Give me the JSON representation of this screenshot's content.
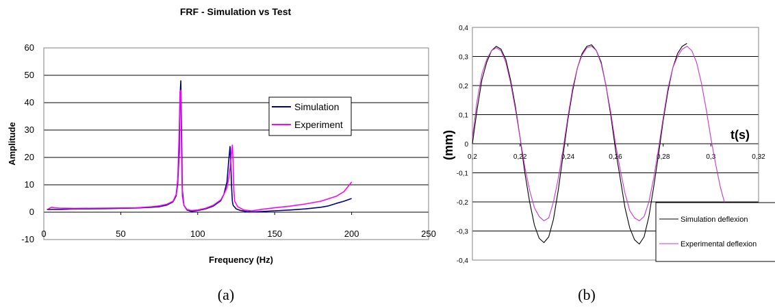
{
  "chart_data": [
    {
      "type": "line",
      "title": "FRF - Simulation vs Test",
      "xlabel": "Frequency (Hz)",
      "ylabel": "Amplitude",
      "xlim": [
        0,
        250
      ],
      "ylim": [
        -10,
        60
      ],
      "xticks": [
        "0",
        "50",
        "100",
        "150",
        "200",
        "250"
      ],
      "yticks": [
        "-10",
        "0",
        "10",
        "20",
        "30",
        "40",
        "50",
        "60"
      ],
      "grid": "horizontal",
      "legend_position": "right",
      "caption": "(a)",
      "series": [
        {
          "name": "Simulation",
          "color": "#000080",
          "x": [
            2,
            10,
            20,
            40,
            60,
            70,
            75,
            80,
            84,
            86,
            87,
            88,
            88.5,
            89,
            89.5,
            90,
            91,
            93,
            96,
            100,
            105,
            110,
            115,
            117,
            119,
            120,
            121,
            121.5,
            122,
            122.5,
            123,
            125,
            128,
            132,
            135,
            140,
            150,
            160,
            170,
            180,
            185,
            190,
            195,
            200
          ],
          "y": [
            1.0,
            1.0,
            1.2,
            1.3,
            1.5,
            1.8,
            2.0,
            2.6,
            3.8,
            6.0,
            10.5,
            22.0,
            42.0,
            48.0,
            30.0,
            8.0,
            2.5,
            0.8,
            0.3,
            0.6,
            1.2,
            2.2,
            4.2,
            6.5,
            11.0,
            18.0,
            24.0,
            18.0,
            9.0,
            4.0,
            2.5,
            1.2,
            0.6,
            0.2,
            0.1,
            0.2,
            0.5,
            0.8,
            1.2,
            1.8,
            2.3,
            3.2,
            4.0,
            5.0
          ]
        },
        {
          "name": "Experiment",
          "color": "#ff00ff",
          "x": [
            3,
            5,
            7,
            10,
            20,
            40,
            60,
            70,
            75,
            80,
            84,
            86,
            87,
            88,
            88.5,
            89,
            89.5,
            90,
            91,
            93,
            96,
            100,
            105,
            110,
            115,
            117,
            119,
            120,
            121,
            122,
            122.5,
            123,
            123.5,
            124,
            126,
            130,
            135,
            140,
            150,
            160,
            170,
            180,
            190,
            195,
            200
          ],
          "y": [
            1.2,
            1.8,
            1.6,
            1.5,
            1.4,
            1.5,
            1.6,
            2.0,
            2.3,
            2.9,
            4.0,
            6.5,
            12.0,
            30.0,
            44.0,
            44.5,
            20.0,
            6.0,
            2.5,
            1.0,
            0.6,
            0.8,
            1.4,
            2.5,
            4.5,
            6.5,
            9.0,
            12.0,
            16.0,
            22.0,
            24.5,
            18.0,
            8.0,
            4.0,
            2.0,
            0.8,
            0.5,
            0.9,
            1.6,
            2.2,
            3.0,
            4.0,
            5.8,
            7.5,
            11.0
          ]
        }
      ]
    },
    {
      "type": "line",
      "xlabel": "t(s)",
      "ylabel": "(mm)",
      "xlim": [
        0.2,
        0.32
      ],
      "ylim": [
        -0.4,
        0.4
      ],
      "xticks": [
        "0,2",
        "0,22",
        "0,24",
        "0,26",
        "0,28",
        "0,3",
        "0,32"
      ],
      "yticks": [
        "0,4",
        "0,3",
        "0,2",
        "0,1",
        "0",
        "-0,1",
        "-0,2",
        "-0,3",
        "-0,4"
      ],
      "grid": "horizontal",
      "legend_position": "bottom-right",
      "caption": "(b)",
      "series": [
        {
          "name": "Simulation deflexion",
          "color": "#000000",
          "x": [
            0.2,
            0.202,
            0.204,
            0.206,
            0.208,
            0.21,
            0.212,
            0.214,
            0.216,
            0.218,
            0.22,
            0.222,
            0.224,
            0.226,
            0.228,
            0.23,
            0.232,
            0.234,
            0.236,
            0.238,
            0.24,
            0.242,
            0.244,
            0.246,
            0.248,
            0.25,
            0.252,
            0.254,
            0.256,
            0.258,
            0.26,
            0.262,
            0.264,
            0.266,
            0.268,
            0.27,
            0.272,
            0.274,
            0.276,
            0.278,
            0.28,
            0.282,
            0.284,
            0.286,
            0.288,
            0.29
          ],
          "y": [
            0.0,
            0.12,
            0.22,
            0.28,
            0.32,
            0.335,
            0.325,
            0.29,
            0.22,
            0.13,
            0.02,
            -0.1,
            -0.2,
            -0.28,
            -0.325,
            -0.34,
            -0.32,
            -0.26,
            -0.16,
            -0.04,
            0.08,
            0.18,
            0.26,
            0.31,
            0.335,
            0.34,
            0.32,
            0.28,
            0.2,
            0.1,
            -0.02,
            -0.12,
            -0.22,
            -0.29,
            -0.33,
            -0.345,
            -0.32,
            -0.25,
            -0.15,
            -0.04,
            0.08,
            0.18,
            0.26,
            0.31,
            0.335,
            0.345
          ]
        },
        {
          "name": "Experimental deflexion",
          "color": "#cc33cc",
          "x": [
            0.2,
            0.202,
            0.204,
            0.206,
            0.208,
            0.21,
            0.212,
            0.214,
            0.216,
            0.218,
            0.22,
            0.222,
            0.224,
            0.226,
            0.228,
            0.23,
            0.232,
            0.234,
            0.236,
            0.238,
            0.24,
            0.242,
            0.244,
            0.246,
            0.248,
            0.25,
            0.252,
            0.254,
            0.256,
            0.258,
            0.26,
            0.262,
            0.264,
            0.266,
            0.268,
            0.27,
            0.272,
            0.274,
            0.276,
            0.278,
            0.28,
            0.282,
            0.284,
            0.286,
            0.288,
            0.29,
            0.292,
            0.294,
            0.296,
            0.298,
            0.3,
            0.302,
            0.304,
            0.306,
            0.308
          ],
          "y": [
            0.02,
            0.15,
            0.24,
            0.29,
            0.32,
            0.33,
            0.32,
            0.28,
            0.21,
            0.12,
            0.02,
            -0.08,
            -0.16,
            -0.22,
            -0.25,
            -0.265,
            -0.255,
            -0.2,
            -0.12,
            -0.02,
            0.09,
            0.19,
            0.26,
            0.305,
            0.33,
            0.335,
            0.32,
            0.275,
            0.2,
            0.11,
            0.0,
            -0.09,
            -0.17,
            -0.23,
            -0.255,
            -0.265,
            -0.25,
            -0.2,
            -0.12,
            -0.02,
            0.09,
            0.19,
            0.26,
            0.3,
            0.325,
            0.335,
            0.32,
            0.28,
            0.21,
            0.12,
            0.02,
            -0.07,
            -0.15,
            -0.21,
            -0.235
          ]
        }
      ]
    }
  ]
}
